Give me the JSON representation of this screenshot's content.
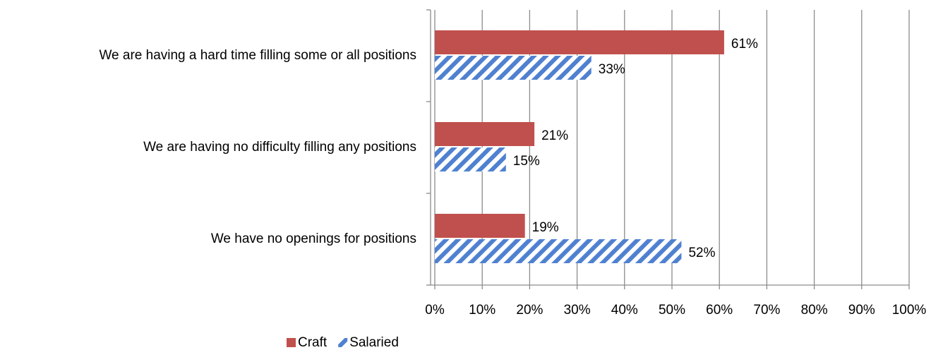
{
  "chart_data": {
    "type": "hbar",
    "categories": [
      "We are having a hard time filling some or all positions",
      "We are having no difficulty filling any positions",
      "We have no openings for positions"
    ],
    "series": [
      {
        "name": "Craft",
        "color": "#c0504d",
        "values": [
          61,
          21,
          19
        ],
        "value_labels": [
          "61%",
          "21%",
          "19%"
        ]
      },
      {
        "name": "Salaried",
        "color": "#4f81d0",
        "hatch": true,
        "values": [
          33,
          15,
          52
        ],
        "value_labels": [
          "33%",
          "15%",
          "52%"
        ]
      }
    ],
    "xlim": [
      0,
      100
    ],
    "xticks": [
      {
        "value": 0,
        "label": "0%"
      },
      {
        "value": 10,
        "label": "10%"
      },
      {
        "value": 20,
        "label": "20%"
      },
      {
        "value": 30,
        "label": "30%"
      },
      {
        "value": 40,
        "label": "40%"
      },
      {
        "value": 50,
        "label": "50%"
      },
      {
        "value": 60,
        "label": "60%"
      },
      {
        "value": 70,
        "label": "70%"
      },
      {
        "value": 80,
        "label": "80%"
      },
      {
        "value": 90,
        "label": "90%"
      },
      {
        "value": 100,
        "label": "100%"
      }
    ],
    "grid": true,
    "legend": "bottom"
  }
}
